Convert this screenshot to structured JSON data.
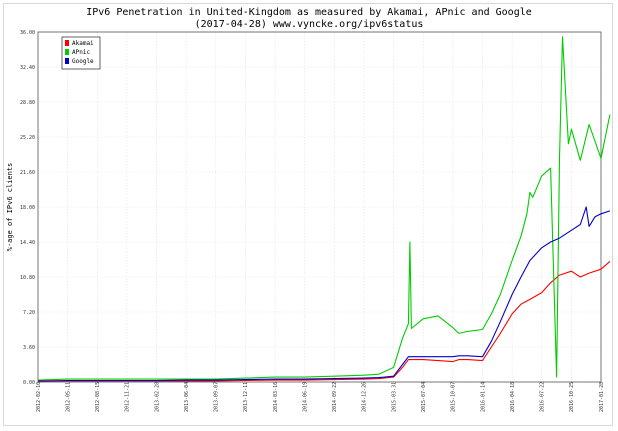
{
  "chart_data": {
    "type": "line",
    "title": "IPv6 Penetration in United-Kingdom as measured by Akamai, APnic and Google",
    "subtitle": "(2017-04-28) www.vyncke.org/ipv6status",
    "xlabel": "",
    "ylabel": "%-age of IPv6 clients",
    "ylim": [
      0,
      36
    ],
    "yticks": [
      "0.00",
      "3.60",
      "7.20",
      "10.80",
      "14.40",
      "18.00",
      "21.60",
      "25.20",
      "28.80",
      "32.40",
      "36.00"
    ],
    "xticks": [
      "2012-02-10",
      "2012-05-11",
      "2012-08-15",
      "2012-11-21",
      "2013-02-28",
      "2013-06-04",
      "2013-09-07",
      "2013-12-11",
      "2014-03-16",
      "2014-06-19",
      "2014-09-22",
      "2014-12-26",
      "2015-03-31",
      "2015-07-04",
      "2015-10-07",
      "2016-01-14",
      "2016-04-18",
      "2016-07-22",
      "2016-10-25",
      "2017-01-28"
    ],
    "grid": true,
    "legend_position": "top-left",
    "series": [
      {
        "name": "Akamai",
        "color": "#ff0000",
        "x": [
          0,
          1,
          2,
          3,
          4,
          5,
          6,
          7,
          8,
          9,
          10,
          11,
          11.5,
          12,
          12.3,
          12.5,
          13,
          13.5,
          14,
          14.2,
          14.5,
          15,
          15.3,
          15.6,
          16,
          16.3,
          16.6,
          17,
          17.3,
          17.6,
          18,
          18.3,
          18.6,
          19,
          19.3
        ],
        "y": [
          0.05,
          0.1,
          0.1,
          0.1,
          0.1,
          0.1,
          0.1,
          0.15,
          0.2,
          0.2,
          0.25,
          0.3,
          0.35,
          0.5,
          1.5,
          2.3,
          2.3,
          2.2,
          2.1,
          2.3,
          2.3,
          2.2,
          3.6,
          5.0,
          7.0,
          8.0,
          8.5,
          9.2,
          10.2,
          11.0,
          11.4,
          10.8,
          11.2,
          11.6,
          12.4
        ]
      },
      {
        "name": "APnic",
        "color": "#00cc00",
        "x": [
          0,
          1,
          2,
          3,
          4,
          5,
          6,
          7,
          8,
          9,
          10,
          11,
          11.5,
          12,
          12.3,
          12.5,
          12.55,
          12.6,
          13,
          13.5,
          14,
          14.2,
          14.5,
          15,
          15.3,
          15.6,
          16,
          16.3,
          16.5,
          16.6,
          16.7,
          17,
          17.3,
          17.5,
          17.6,
          17.7,
          17.9,
          18,
          18.3,
          18.6,
          19,
          19.3
        ],
        "y": [
          0.2,
          0.3,
          0.3,
          0.3,
          0.3,
          0.3,
          0.3,
          0.4,
          0.5,
          0.5,
          0.6,
          0.7,
          0.8,
          1.5,
          4.5,
          6.0,
          14.4,
          5.5,
          6.5,
          6.8,
          5.6,
          5.0,
          5.2,
          5.4,
          7.0,
          9.0,
          12.5,
          15.0,
          17.3,
          19.5,
          19.0,
          21.2,
          22.0,
          0.5,
          23.0,
          35.5,
          24.5,
          26.0,
          22.8,
          26.5,
          23.0,
          27.5
        ]
      },
      {
        "name": "Google",
        "color": "#0000cc",
        "x": [
          0,
          1,
          2,
          3,
          4,
          5,
          6,
          7,
          8,
          9,
          10,
          11,
          11.5,
          12,
          12.3,
          12.5,
          13,
          13.5,
          14,
          14.2,
          14.5,
          15,
          15.3,
          15.6,
          16,
          16.3,
          16.6,
          17,
          17.3,
          17.6,
          18,
          18.3,
          18.5,
          18.6,
          18.8,
          19,
          19.3
        ],
        "y": [
          0.1,
          0.15,
          0.15,
          0.15,
          0.15,
          0.2,
          0.2,
          0.25,
          0.3,
          0.3,
          0.35,
          0.4,
          0.45,
          0.6,
          1.8,
          2.6,
          2.6,
          2.6,
          2.6,
          2.7,
          2.7,
          2.6,
          4.2,
          6.2,
          9.0,
          10.8,
          12.5,
          13.8,
          14.4,
          14.8,
          15.6,
          16.2,
          18.0,
          16.0,
          17.0,
          17.3,
          17.6
        ]
      }
    ]
  }
}
